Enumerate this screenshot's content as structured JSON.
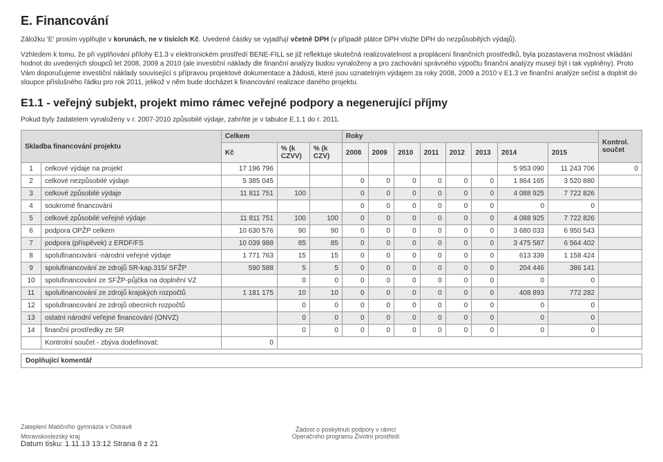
{
  "h1": "E. Financování",
  "p1_a": "Záložku 'E' prosím vyplňujte v ",
  "p1_b": "korunách, ne v tisících Kč",
  "p1_c": ". Uvedené částky se vyjadřují ",
  "p1_d": "včetně DPH",
  "p1_e": " (v případě plátce DPH vložte DPH do nezpůsobilých výdajů).",
  "p2": "Vzhledem k tomu, že při vyplňování přílohy E1.3 v elektronickém prostředí BENE-FILL se již reflektuje skutečná realizovatelnost a proplácení finančních prostředků, byla pozastavena možnost vkládání hodnot do uvedených sloupců let 2008, 2009 a 2010 (ale investiční náklady dle finanční analýzy budou vynaloženy a pro zachování správného výpočtu finanční analýzy musejí být i tak vyplněny). Proto Vám doporučujeme investiční náklady související s přípravou projektové dokumentace a žádosti, které jsou uznatelným výdajem za roky 2008, 2009 a 2010 v E1.3 ve finanční analýze sečíst a doplnit do sloupce příslušného řádku pro rok 2011, jelikož v něm bude docházet k financování realizace daného projektu.",
  "h2": "E1.1 - veřejný subjekt, projekt mimo rámec veřejné podpory a negenerující příjmy",
  "p3": "Pokud byly žadatelem vynaloženy v r. 2007-2010 způsobilé výdaje, zahrňte je v tabulce E.1.1 do r. 2011.",
  "th_skladba": "Skladba financování projektu",
  "th_celkem": "Celkem",
  "th_roky": "Roky",
  "th_kontrol": "Kontrol. součet",
  "th_kc": "Kč",
  "th_pct1": "% (k CZVV)",
  "th_pct2": "% (k CZV)",
  "years": [
    "2008",
    "2009",
    "2010",
    "2011",
    "2012",
    "2013",
    "2014",
    "2015"
  ],
  "rows": [
    {
      "i": "1",
      "label": "celkové výdaje na projekt",
      "kc": "17 196 796",
      "p1": "",
      "p2": "",
      "y": [
        "",
        "",
        "",
        "",
        "",
        "",
        "5 953 090",
        "11 243 706"
      ],
      "k": "0",
      "shade": false
    },
    {
      "i": "2",
      "label": "celkové nezpůsobilé výdaje",
      "kc": "5 385 045",
      "p1": "",
      "p2": "",
      "y": [
        "0",
        "0",
        "0",
        "0",
        "0",
        "0",
        "1 864 165",
        "3 520 880"
      ],
      "k": "",
      "shade": false
    },
    {
      "i": "3",
      "label": "celkové způsobilé výdaje",
      "kc": "11 811 751",
      "p1": "100",
      "p2": "",
      "y": [
        "0",
        "0",
        "0",
        "0",
        "0",
        "0",
        "4 088 925",
        "7 722 826"
      ],
      "k": "",
      "shade": true
    },
    {
      "i": "4",
      "label": "soukromé financování",
      "kc": "",
      "p1": "",
      "p2": "",
      "y": [
        "0",
        "0",
        "0",
        "0",
        "0",
        "0",
        "0",
        "0"
      ],
      "k": "",
      "shade": false
    },
    {
      "i": "5",
      "label": "celkové způsobilé veřejné výdaje",
      "kc": "11 811 751",
      "p1": "100",
      "p2": "100",
      "y": [
        "0",
        "0",
        "0",
        "0",
        "0",
        "0",
        "4 088 925",
        "7 722 826"
      ],
      "k": "",
      "shade": true
    },
    {
      "i": "6",
      "label": "podpora OPŽP celkem",
      "kc": "10 630 576",
      "p1": "90",
      "p2": "90",
      "y": [
        "0",
        "0",
        "0",
        "0",
        "0",
        "0",
        "3 680 033",
        "6 950 543"
      ],
      "k": "",
      "shade": false
    },
    {
      "i": "7",
      "label": "podpora (příspěvek) z ERDF/FS",
      "kc": "10 039 988",
      "p1": "85",
      "p2": "85",
      "y": [
        "0",
        "0",
        "0",
        "0",
        "0",
        "0",
        "3 475 587",
        "6 564 402"
      ],
      "k": "",
      "shade": true
    },
    {
      "i": "8",
      "label": "spolufinancování -národní veřejné výdaje",
      "kc": "1 771 763",
      "p1": "15",
      "p2": "15",
      "y": [
        "0",
        "0",
        "0",
        "0",
        "0",
        "0",
        "613 339",
        "1 158 424"
      ],
      "k": "",
      "shade": false
    },
    {
      "i": "9",
      "label": "spolufinancování ze zdrojů SR-kap.315/ SFŽP",
      "kc": "590 588",
      "p1": "5",
      "p2": "5",
      "y": [
        "0",
        "0",
        "0",
        "0",
        "0",
        "0",
        "204 446",
        "386 141"
      ],
      "k": "",
      "shade": true
    },
    {
      "i": "10",
      "label": "spolufinancování ze SFŽP-půjčka na doplnění VZ",
      "kc": "",
      "p1": "0",
      "p2": "0",
      "y": [
        "0",
        "0",
        "0",
        "0",
        "0",
        "0",
        "0",
        "0"
      ],
      "k": "",
      "shade": false
    },
    {
      "i": "11",
      "label": "spolufinancování ze zdrojů krajských rozpočtů",
      "kc": "1 181 175",
      "p1": "10",
      "p2": "10",
      "y": [
        "0",
        "0",
        "0",
        "0",
        "0",
        "0",
        "408 893",
        "772 282"
      ],
      "k": "",
      "shade": true
    },
    {
      "i": "12",
      "label": "spolufinancování ze zdrojů obecních rozpočtů",
      "kc": "",
      "p1": "0",
      "p2": "0",
      "y": [
        "0",
        "0",
        "0",
        "0",
        "0",
        "0",
        "0",
        "0"
      ],
      "k": "",
      "shade": false
    },
    {
      "i": "13",
      "label": "ostatní národní veřejné financování (ONVZ)",
      "kc": "",
      "p1": "0",
      "p2": "0",
      "y": [
        "0",
        "0",
        "0",
        "0",
        "0",
        "0",
        "0",
        "0"
      ],
      "k": "",
      "shade": true
    },
    {
      "i": "14",
      "label": "finanční prostředky ze SR",
      "kc": "",
      "p1": "0",
      "p2": "0",
      "y": [
        "0",
        "0",
        "0",
        "0",
        "0",
        "0",
        "0",
        "0"
      ],
      "k": "",
      "shade": false
    }
  ],
  "sumrow_label": "Kontrolní součet - zbýva dodefinovat:",
  "sumrow_val": "0",
  "dopln": "Doplňující komentář",
  "footer_left1": "Zateplení Matičního gymnázia v Ostravě",
  "footer_left2": "Moravskoslezský kraj",
  "footer_center1": "Žádost o poskytnutí podpory v rámci",
  "footer_center2": "Operačního programu Životní prostředí",
  "footer_date": "Datum tisku: 1.11.13 13:12",
  "footer_page": "Strana 8 z 21"
}
